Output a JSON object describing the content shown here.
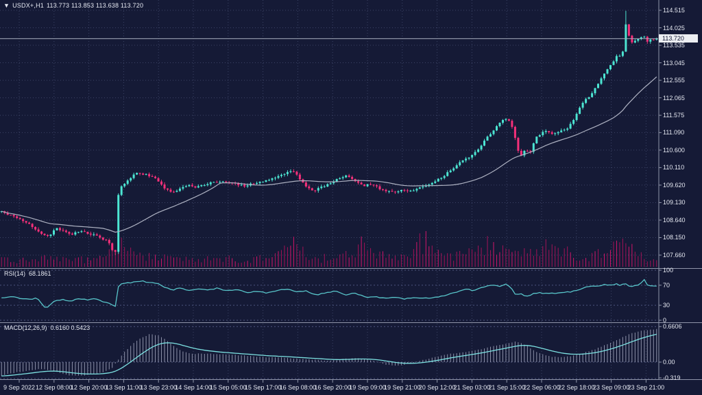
{
  "header": {
    "dropdown_icon": "▼",
    "symbol_timeframe": "USDX+,H1",
    "ohlc": "113.773 113.853 113.638 113.720"
  },
  "colors": {
    "background": "#151a36",
    "grid": "#3d4467",
    "level": "#555d88",
    "bull": "#4ce5d2",
    "bear": "#f5307a",
    "volume": "#a31257",
    "volume_bright": "#d2156a",
    "ma": "#aeb2c2",
    "rsi": "#58c5ca",
    "macd_signal": "#7de2e2",
    "macd_hist": "#b7bbd1",
    "text": "#e6e9f2",
    "separator": "#9096aa",
    "price_line": "#a7adbd",
    "tag_bg": "#eceef2",
    "tag_text": "#121632"
  },
  "chart_data": {
    "type": "candlestick",
    "title": "USDX+,H1",
    "ohlc": {
      "open": 113.773,
      "high": 113.853,
      "low": 113.638,
      "close": 113.72
    },
    "current_price_label": "113.720",
    "num_candles": 214,
    "ma_window": 34,
    "y_axis": {
      "labels": [
        "114.515",
        "114.025",
        "113.535",
        "113.045",
        "112.555",
        "112.065",
        "111.575",
        "111.090",
        "110.600",
        "110.110",
        "109.620",
        "109.130",
        "108.640",
        "108.150",
        "107.660"
      ],
      "top": 114.515,
      "bottom": 107.66
    },
    "x_axis": {
      "labels": [
        "9 Sep 2022",
        "12 Sep 08:00",
        "12 Sep 20:00",
        "13 Sep 11:00",
        "13 Sep 23:00",
        "14 Sep 14:00",
        "15 Sep 05:00",
        "15 Sep 17:00",
        "16 Sep 08:00",
        "16 Sep 20:00",
        "19 Sep 09:00",
        "19 Sep 21:00",
        "20 Sep 12:00",
        "21 Sep 03:00",
        "21 Sep 15:00",
        "22 Sep 06:00",
        "22 Sep 18:00",
        "23 Sep 09:00",
        "23 Sep 21:00"
      ]
    },
    "price_path": [
      [
        0.0,
        108.88
      ],
      [
        0.008,
        108.82
      ],
      [
        0.02,
        108.72
      ],
      [
        0.035,
        108.62
      ],
      [
        0.05,
        108.42
      ],
      [
        0.062,
        108.22
      ],
      [
        0.072,
        108.18
      ],
      [
        0.082,
        108.42
      ],
      [
        0.095,
        108.32
      ],
      [
        0.105,
        108.22
      ],
      [
        0.118,
        108.32
      ],
      [
        0.13,
        108.28
      ],
      [
        0.142,
        108.22
      ],
      [
        0.152,
        108.12
      ],
      [
        0.162,
        108.05
      ],
      [
        0.17,
        107.78
      ],
      [
        0.174,
        107.75
      ],
      [
        0.179,
        109.55
      ],
      [
        0.188,
        109.65
      ],
      [
        0.198,
        109.85
      ],
      [
        0.208,
        109.98
      ],
      [
        0.218,
        109.92
      ],
      [
        0.228,
        109.88
      ],
      [
        0.24,
        109.72
      ],
      [
        0.252,
        109.48
      ],
      [
        0.262,
        109.42
      ],
      [
        0.272,
        109.52
      ],
      [
        0.285,
        109.62
      ],
      [
        0.298,
        109.55
      ],
      [
        0.31,
        109.62
      ],
      [
        0.325,
        109.72
      ],
      [
        0.34,
        109.7
      ],
      [
        0.355,
        109.66
      ],
      [
        0.37,
        109.6
      ],
      [
        0.385,
        109.66
      ],
      [
        0.4,
        109.72
      ],
      [
        0.415,
        109.82
      ],
      [
        0.432,
        109.95
      ],
      [
        0.445,
        110.02
      ],
      [
        0.455,
        109.8
      ],
      [
        0.465,
        109.58
      ],
      [
        0.478,
        109.46
      ],
      [
        0.49,
        109.58
      ],
      [
        0.503,
        109.68
      ],
      [
        0.515,
        109.8
      ],
      [
        0.528,
        109.88
      ],
      [
        0.54,
        109.72
      ],
      [
        0.553,
        109.6
      ],
      [
        0.565,
        109.66
      ],
      [
        0.578,
        109.52
      ],
      [
        0.59,
        109.46
      ],
      [
        0.6,
        109.4
      ],
      [
        0.612,
        109.5
      ],
      [
        0.625,
        109.45
      ],
      [
        0.637,
        109.55
      ],
      [
        0.65,
        109.62
      ],
      [
        0.662,
        109.72
      ],
      [
        0.675,
        109.88
      ],
      [
        0.687,
        110.05
      ],
      [
        0.698,
        110.22
      ],
      [
        0.708,
        110.33
      ],
      [
        0.718,
        110.45
      ],
      [
        0.728,
        110.62
      ],
      [
        0.738,
        110.88
      ],
      [
        0.748,
        111.08
      ],
      [
        0.757,
        111.3
      ],
      [
        0.765,
        111.42
      ],
      [
        0.772,
        111.48
      ],
      [
        0.778,
        111.32
      ],
      [
        0.783,
        111.0
      ],
      [
        0.788,
        110.6
      ],
      [
        0.793,
        110.45
      ],
      [
        0.8,
        110.62
      ],
      [
        0.806,
        110.5
      ],
      [
        0.812,
        110.78
      ],
      [
        0.818,
        111.0
      ],
      [
        0.825,
        111.08
      ],
      [
        0.833,
        111.12
      ],
      [
        0.84,
        111.05
      ],
      [
        0.848,
        111.1
      ],
      [
        0.856,
        111.15
      ],
      [
        0.864,
        111.22
      ],
      [
        0.872,
        111.4
      ],
      [
        0.88,
        111.7
      ],
      [
        0.888,
        111.95
      ],
      [
        0.896,
        112.08
      ],
      [
        0.904,
        112.28
      ],
      [
        0.912,
        112.5
      ],
      [
        0.92,
        112.72
      ],
      [
        0.928,
        112.95
      ],
      [
        0.936,
        113.1
      ],
      [
        0.942,
        113.32
      ],
      [
        0.947,
        113.12
      ],
      [
        0.9545,
        114.35
      ],
      [
        0.959,
        113.58
      ],
      [
        0.966,
        113.62
      ],
      [
        0.973,
        113.72
      ],
      [
        0.979,
        113.8
      ],
      [
        0.986,
        113.66
      ],
      [
        1.0,
        113.72
      ]
    ],
    "volume_envelope": [
      [
        0,
        10
      ],
      [
        0.04,
        9
      ],
      [
        0.08,
        12
      ],
      [
        0.12,
        10
      ],
      [
        0.155,
        13
      ],
      [
        0.168,
        26
      ],
      [
        0.176,
        40
      ],
      [
        0.185,
        28
      ],
      [
        0.2,
        16
      ],
      [
        0.23,
        13
      ],
      [
        0.27,
        11
      ],
      [
        0.31,
        10
      ],
      [
        0.35,
        12
      ],
      [
        0.39,
        11
      ],
      [
        0.42,
        13
      ],
      [
        0.448,
        38
      ],
      [
        0.462,
        16
      ],
      [
        0.49,
        12
      ],
      [
        0.52,
        13
      ],
      [
        0.555,
        34
      ],
      [
        0.57,
        16
      ],
      [
        0.6,
        13
      ],
      [
        0.625,
        16
      ],
      [
        0.648,
        44
      ],
      [
        0.662,
        20
      ],
      [
        0.69,
        16
      ],
      [
        0.72,
        18
      ],
      [
        0.742,
        30
      ],
      [
        0.76,
        22
      ],
      [
        0.78,
        18
      ],
      [
        0.8,
        20
      ],
      [
        0.82,
        24
      ],
      [
        0.838,
        28
      ],
      [
        0.86,
        22
      ],
      [
        0.88,
        18
      ],
      [
        0.9,
        16
      ],
      [
        0.92,
        18
      ],
      [
        0.94,
        26
      ],
      [
        0.952,
        34
      ],
      [
        0.962,
        28
      ],
      [
        0.975,
        14
      ],
      [
        0.99,
        11
      ],
      [
        1,
        10
      ]
    ],
    "rsi": {
      "label": "RSI(14)",
      "value": "68.1861",
      "levels": [
        100,
        70,
        30,
        0
      ],
      "level_labels": [
        "100",
        "70",
        "30",
        "0"
      ],
      "path": [
        [
          0,
          45
        ],
        [
          0.02,
          47
        ],
        [
          0.04,
          41
        ],
        [
          0.055,
          44
        ],
        [
          0.062,
          32
        ],
        [
          0.068,
          23
        ],
        [
          0.08,
          38
        ],
        [
          0.095,
          41
        ],
        [
          0.105,
          37
        ],
        [
          0.115,
          44
        ],
        [
          0.13,
          41
        ],
        [
          0.142,
          43
        ],
        [
          0.152,
          38
        ],
        [
          0.162,
          35
        ],
        [
          0.174,
          28
        ],
        [
          0.179,
          72
        ],
        [
          0.19,
          74
        ],
        [
          0.205,
          76
        ],
        [
          0.215,
          78
        ],
        [
          0.228,
          75
        ],
        [
          0.24,
          72
        ],
        [
          0.25,
          66
        ],
        [
          0.26,
          60
        ],
        [
          0.272,
          64
        ],
        [
          0.285,
          59
        ],
        [
          0.3,
          63
        ],
        [
          0.315,
          60
        ],
        [
          0.33,
          64
        ],
        [
          0.345,
          59
        ],
        [
          0.36,
          62
        ],
        [
          0.375,
          55
        ],
        [
          0.39,
          58
        ],
        [
          0.405,
          54
        ],
        [
          0.42,
          59
        ],
        [
          0.435,
          63
        ],
        [
          0.45,
          56
        ],
        [
          0.465,
          58
        ],
        [
          0.48,
          50
        ],
        [
          0.495,
          55
        ],
        [
          0.51,
          58
        ],
        [
          0.525,
          51
        ],
        [
          0.54,
          54
        ],
        [
          0.555,
          46
        ],
        [
          0.57,
          48
        ],
        [
          0.585,
          43
        ],
        [
          0.6,
          45
        ],
        [
          0.615,
          43
        ],
        [
          0.632,
          45
        ],
        [
          0.65,
          44
        ],
        [
          0.668,
          46
        ],
        [
          0.685,
          53
        ],
        [
          0.698,
          58
        ],
        [
          0.71,
          62
        ],
        [
          0.72,
          59
        ],
        [
          0.73,
          64
        ],
        [
          0.74,
          68
        ],
        [
          0.75,
          70
        ],
        [
          0.76,
          68
        ],
        [
          0.77,
          72
        ],
        [
          0.778,
          64
        ],
        [
          0.785,
          50
        ],
        [
          0.793,
          54
        ],
        [
          0.8,
          48
        ],
        [
          0.81,
          52
        ],
        [
          0.82,
          56
        ],
        [
          0.83,
          53
        ],
        [
          0.84,
          55
        ],
        [
          0.85,
          54
        ],
        [
          0.862,
          56
        ],
        [
          0.875,
          58
        ],
        [
          0.887,
          64
        ],
        [
          0.898,
          69
        ],
        [
          0.908,
          67
        ],
        [
          0.918,
          71
        ],
        [
          0.928,
          69
        ],
        [
          0.938,
          73
        ],
        [
          0.945,
          69
        ],
        [
          0.952,
          74
        ],
        [
          0.96,
          66
        ],
        [
          0.968,
          70
        ],
        [
          0.975,
          72
        ],
        [
          0.982,
          83
        ],
        [
          0.987,
          67
        ],
        [
          0.993,
          69
        ],
        [
          1,
          68.2
        ]
      ]
    },
    "macd": {
      "label": "MACD(12,26,9)",
      "values": "0.6160 0.5423",
      "axis_labels": [
        "0.6606",
        "0.00",
        "-0.319"
      ],
      "axis_values": [
        0.6606,
        0.0,
        -0.319
      ],
      "main_path": [
        [
          0,
          -0.25
        ],
        [
          0.02,
          -0.2
        ],
        [
          0.04,
          -0.16
        ],
        [
          0.06,
          -0.13
        ],
        [
          0.08,
          -0.16
        ],
        [
          0.1,
          -0.24
        ],
        [
          0.12,
          -0.26
        ],
        [
          0.14,
          -0.22
        ],
        [
          0.155,
          -0.19
        ],
        [
          0.168,
          -0.12
        ],
        [
          0.176,
          0.0
        ],
        [
          0.185,
          0.15
        ],
        [
          0.195,
          0.28
        ],
        [
          0.205,
          0.38
        ],
        [
          0.215,
          0.46
        ],
        [
          0.226,
          0.52
        ],
        [
          0.238,
          0.5
        ],
        [
          0.25,
          0.42
        ],
        [
          0.263,
          0.3
        ],
        [
          0.276,
          0.2
        ],
        [
          0.29,
          0.15
        ],
        [
          0.31,
          0.16
        ],
        [
          0.33,
          0.15
        ],
        [
          0.35,
          0.14
        ],
        [
          0.37,
          0.12
        ],
        [
          0.39,
          0.1
        ],
        [
          0.41,
          0.09
        ],
        [
          0.43,
          0.08
        ],
        [
          0.45,
          0.06
        ],
        [
          0.47,
          0.05
        ],
        [
          0.49,
          0.03
        ],
        [
          0.51,
          0.03
        ],
        [
          0.525,
          0.06
        ],
        [
          0.54,
          0.08
        ],
        [
          0.555,
          0.05
        ],
        [
          0.57,
          0.01
        ],
        [
          0.585,
          -0.04
        ],
        [
          0.6,
          -0.07
        ],
        [
          0.615,
          -0.05
        ],
        [
          0.63,
          -0.01
        ],
        [
          0.645,
          0.04
        ],
        [
          0.66,
          0.09
        ],
        [
          0.675,
          0.13
        ],
        [
          0.69,
          0.16
        ],
        [
          0.705,
          0.18
        ],
        [
          0.72,
          0.21
        ],
        [
          0.735,
          0.25
        ],
        [
          0.75,
          0.29
        ],
        [
          0.765,
          0.33
        ],
        [
          0.778,
          0.37
        ],
        [
          0.788,
          0.38
        ],
        [
          0.798,
          0.33
        ],
        [
          0.81,
          0.24
        ],
        [
          0.822,
          0.16
        ],
        [
          0.835,
          0.11
        ],
        [
          0.848,
          0.09
        ],
        [
          0.86,
          0.1
        ],
        [
          0.872,
          0.12
        ],
        [
          0.885,
          0.16
        ],
        [
          0.898,
          0.2
        ],
        [
          0.91,
          0.26
        ],
        [
          0.922,
          0.32
        ],
        [
          0.934,
          0.38
        ],
        [
          0.946,
          0.45
        ],
        [
          0.958,
          0.52
        ],
        [
          0.97,
          0.56
        ],
        [
          0.982,
          0.59
        ],
        [
          1,
          0.616
        ]
      ]
    }
  }
}
